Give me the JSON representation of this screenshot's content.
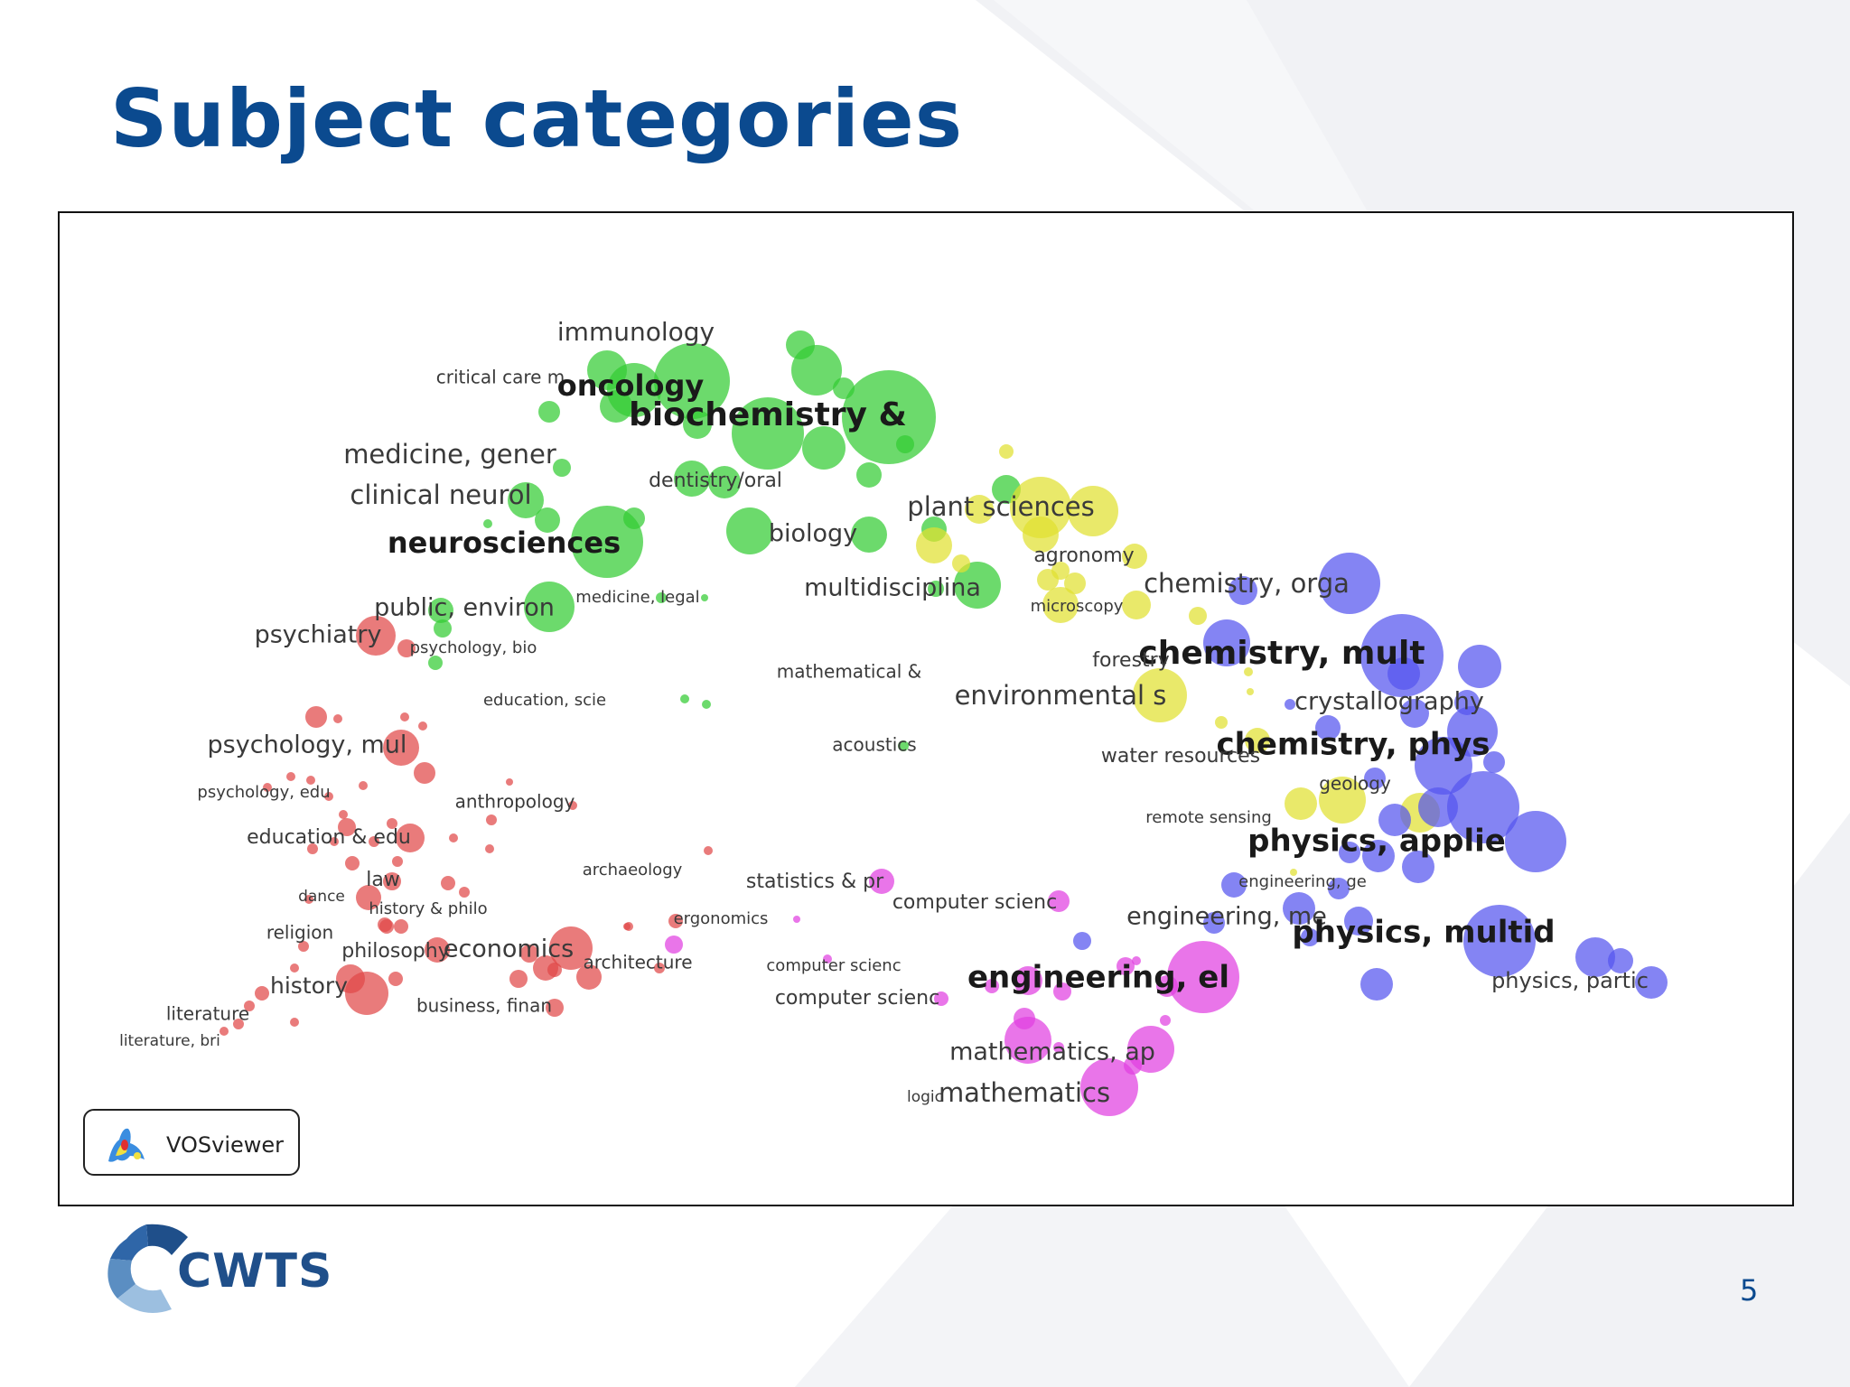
{
  "slide": {
    "title": "Subject categories",
    "page_number": "5",
    "title_color": "#0b4a8f"
  },
  "logo": {
    "text": "CWTS",
    "colors": [
      "#1f4f8a",
      "#5b8ec2",
      "#9cbfe0"
    ]
  },
  "vosviewer": {
    "label": "VOSviewer"
  },
  "cluster_colors": {
    "green": "#33cc33",
    "red": "#e04848",
    "yellow": "#e0e030",
    "blue": "#5555ee",
    "magenta": "#e040e0"
  },
  "labels": [
    {
      "text": "immunology",
      "bold": false
    },
    {
      "text": "critical care m",
      "bold": false
    },
    {
      "text": "oncology",
      "bold": true
    },
    {
      "text": "biochemistry &",
      "bold": true
    },
    {
      "text": "medicine, gener",
      "bold": false
    },
    {
      "text": "dentistry/oral",
      "bold": false
    },
    {
      "text": "clinical neurol",
      "bold": false
    },
    {
      "text": "plant sciences",
      "bold": false
    },
    {
      "text": "neurosciences",
      "bold": true
    },
    {
      "text": "biology",
      "bold": false
    },
    {
      "text": "agronomy",
      "bold": false
    },
    {
      "text": "chemistry, orga",
      "bold": false
    },
    {
      "text": "multidisciplina",
      "bold": false
    },
    {
      "text": "public, environ",
      "bold": false
    },
    {
      "text": "medicine, legal",
      "bold": false
    },
    {
      "text": "microscopy",
      "bold": false
    },
    {
      "text": "psychiatry",
      "bold": false
    },
    {
      "text": "psychology, bio",
      "bold": false
    },
    {
      "text": "chemistry, mult",
      "bold": true
    },
    {
      "text": "forestry",
      "bold": false
    },
    {
      "text": "mathematical &",
      "bold": false
    },
    {
      "text": "environmental s",
      "bold": false
    },
    {
      "text": "education, scie",
      "bold": false
    },
    {
      "text": "crystallography",
      "bold": false
    },
    {
      "text": "psychology, mul",
      "bold": false
    },
    {
      "text": "acoustics",
      "bold": false
    },
    {
      "text": "chemistry, phys",
      "bold": true
    },
    {
      "text": "water resources",
      "bold": false
    },
    {
      "text": "geology",
      "bold": false
    },
    {
      "text": "psychology, edu",
      "bold": false
    },
    {
      "text": "anthropology",
      "bold": false
    },
    {
      "text": "remote sensing",
      "bold": false
    },
    {
      "text": "education & edu",
      "bold": false
    },
    {
      "text": "physics, applie",
      "bold": true
    },
    {
      "text": "archaeology",
      "bold": false
    },
    {
      "text": "law",
      "bold": false
    },
    {
      "text": "statistics & pr",
      "bold": false
    },
    {
      "text": "engineering, ge",
      "bold": false
    },
    {
      "text": "dance",
      "bold": false
    },
    {
      "text": "history & philo",
      "bold": false
    },
    {
      "text": "computer scienc",
      "bold": false
    },
    {
      "text": "ergonomics",
      "bold": false
    },
    {
      "text": "engineering, me",
      "bold": false
    },
    {
      "text": "religion",
      "bold": false
    },
    {
      "text": "physics, multid",
      "bold": true
    },
    {
      "text": "philosophy",
      "bold": false
    },
    {
      "text": "economics",
      "bold": false
    },
    {
      "text": "architecture",
      "bold": false
    },
    {
      "text": "computer scienc",
      "bold": false
    },
    {
      "text": "engineering, el",
      "bold": true
    },
    {
      "text": "history",
      "bold": false
    },
    {
      "text": "physics, partic",
      "bold": false
    },
    {
      "text": "computer scienc",
      "bold": false
    },
    {
      "text": "literature",
      "bold": false
    },
    {
      "text": "business, finan",
      "bold": false
    },
    {
      "text": "literature, bri",
      "bold": false
    },
    {
      "text": "mathematics, ap",
      "bold": false
    },
    {
      "text": "logic",
      "bold": false
    },
    {
      "text": "mathematics",
      "bold": false
    }
  ]
}
